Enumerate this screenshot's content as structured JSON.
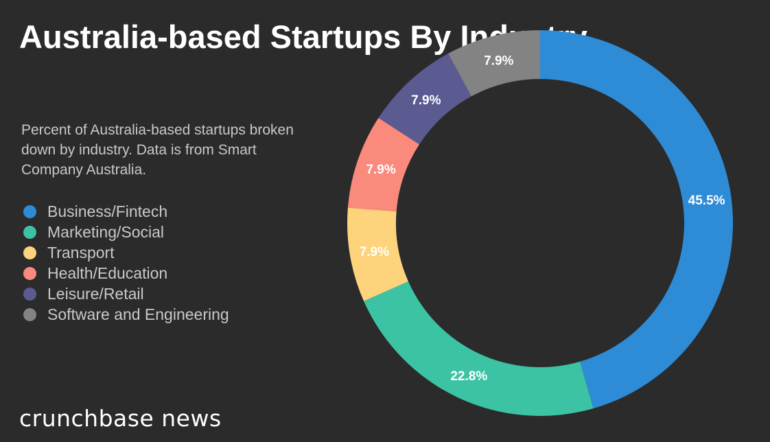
{
  "chart_data": {
    "type": "pie",
    "donut": true,
    "title": "Australia-based Startups By Industry",
    "subtitle": "Percent of Australia-based startups broken down by industry. Data is from Smart Company Australia.",
    "legend_position": "left",
    "slices": [
      {
        "name": "Business/Fintech",
        "value": 45.5,
        "label": "45.5%",
        "color": "#2e8bd6"
      },
      {
        "name": "Marketing/Social",
        "value": 22.8,
        "label": "22.8%",
        "color": "#3cc3a3"
      },
      {
        "name": "Transport",
        "value": 7.9,
        "label": "7.9%",
        "color": "#fdd47b"
      },
      {
        "name": "Health/Education",
        "value": 7.9,
        "label": "7.9%",
        "color": "#f98a7c"
      },
      {
        "name": "Leisure/Retail",
        "value": 7.9,
        "label": "7.9%",
        "color": "#5b5b91"
      },
      {
        "name": "Software and Engineering",
        "value": 7.9,
        "label": "7.9%",
        "color": "#838383"
      }
    ]
  },
  "brand": "crunchbase news"
}
